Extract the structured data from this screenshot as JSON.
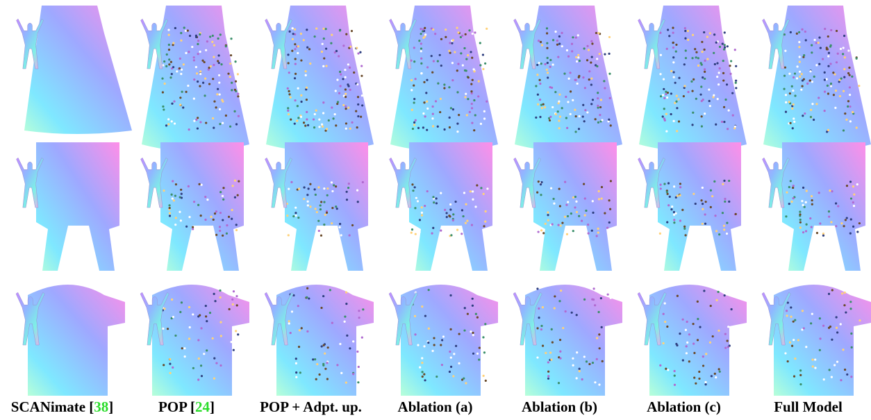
{
  "columns": [
    {
      "label": "SCANimate",
      "cite": [
        "[",
        "38",
        "]"
      ]
    },
    {
      "label": "POP",
      "cite": [
        "[",
        "24",
        "]"
      ]
    },
    {
      "label": "POP + Adpt. up."
    },
    {
      "label": "Ablation (a)"
    },
    {
      "label": "Ablation (b)"
    },
    {
      "label": "Ablation (c)"
    },
    {
      "label": "Full Model"
    }
  ]
}
